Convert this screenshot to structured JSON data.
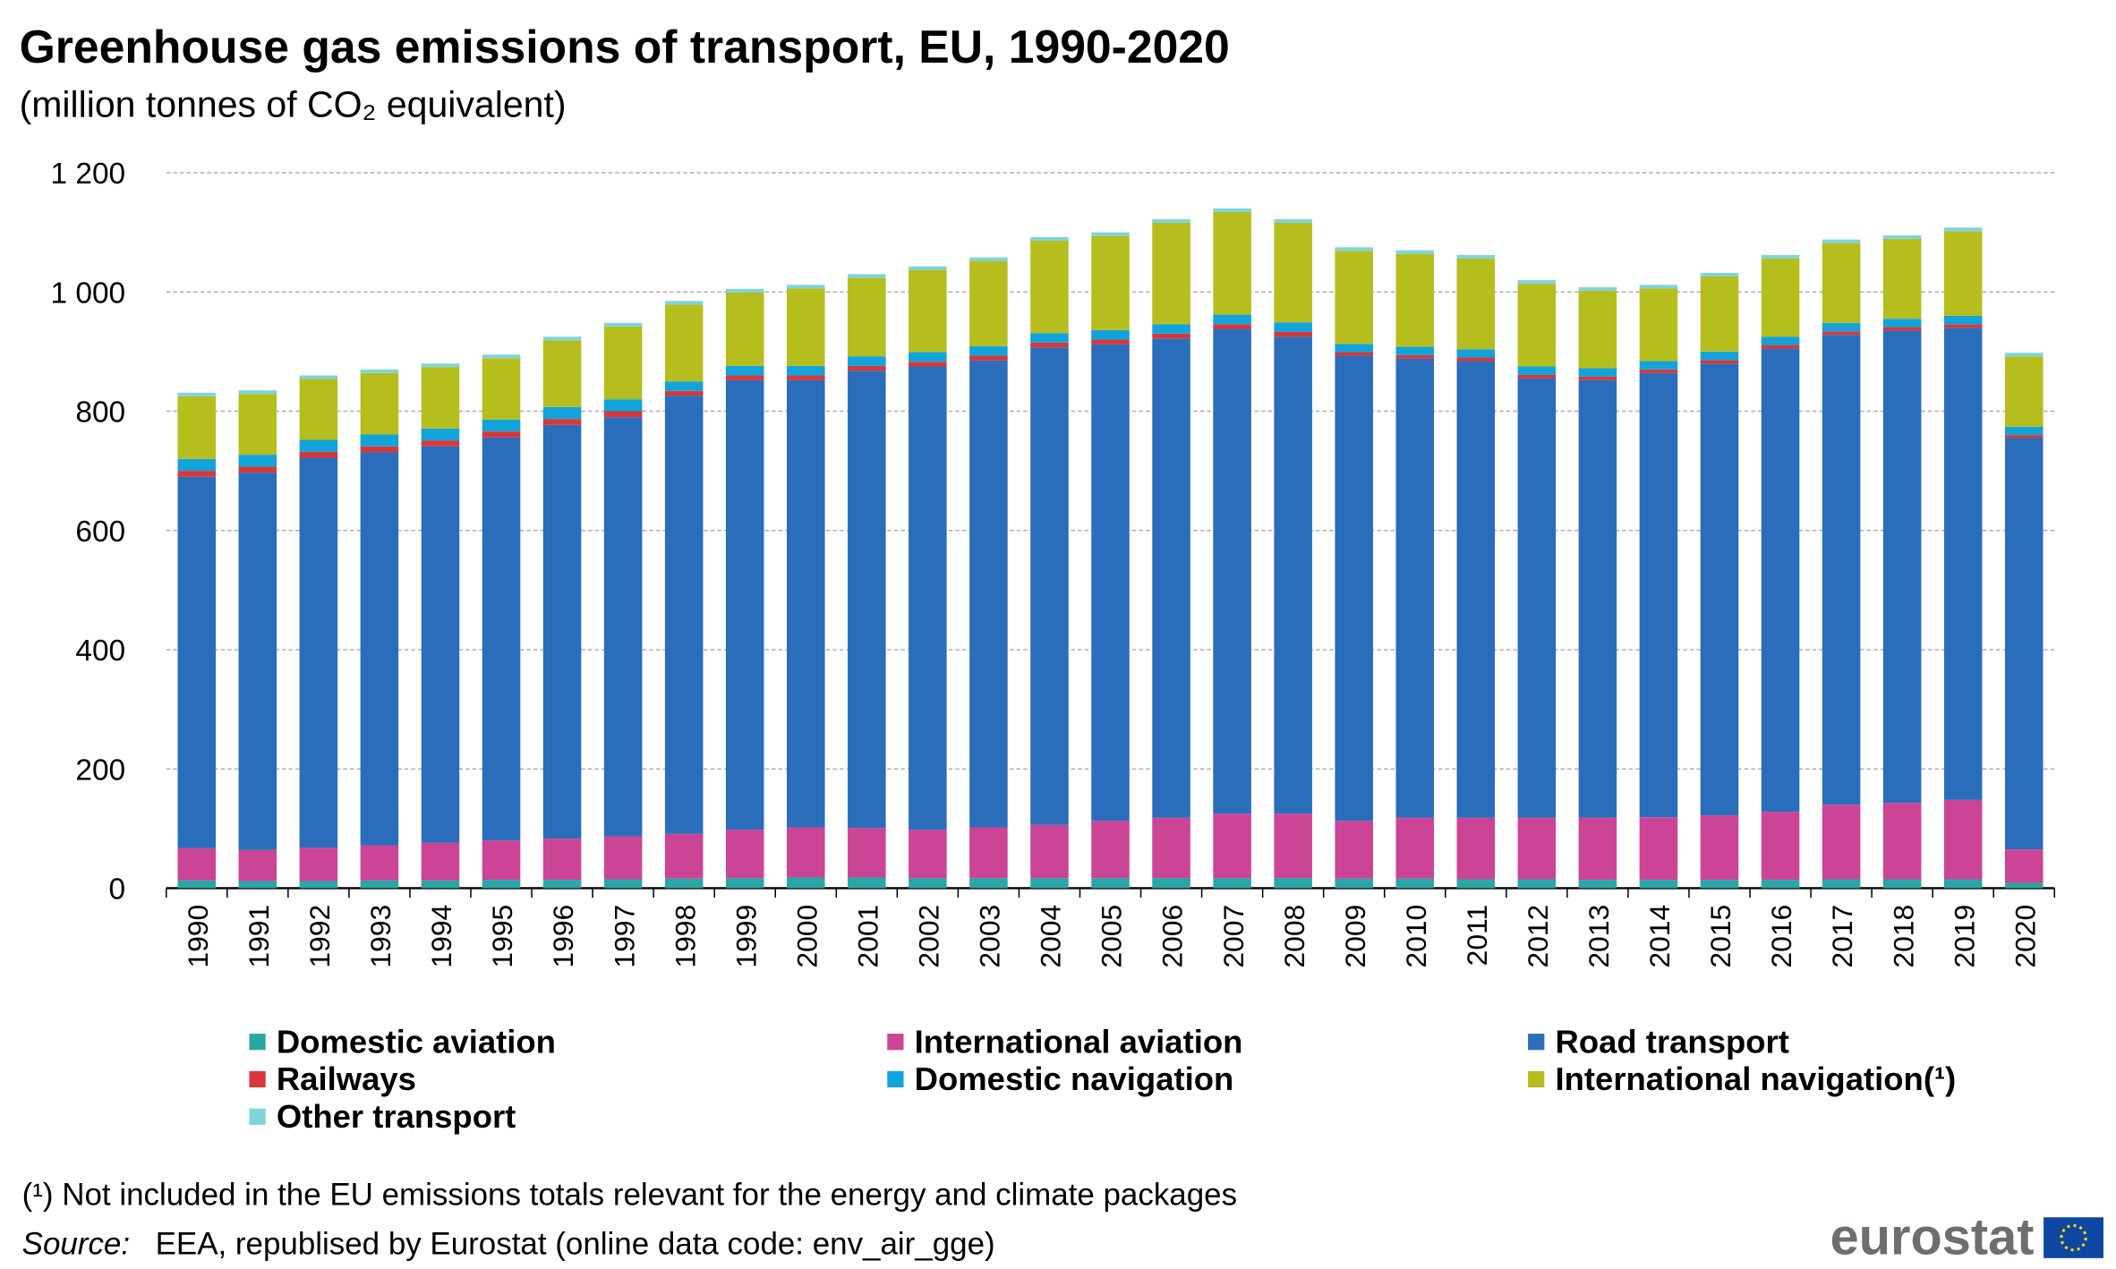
{
  "chart_data": {
    "type": "stacked_bar",
    "title": "Greenhouse gas emissions of transport, EU, 1990-2020",
    "subtitle": "(million tonnes of CO₂ equivalent)",
    "categories": [
      "1990",
      "1991",
      "1992",
      "1993",
      "1994",
      "1995",
      "1996",
      "1997",
      "1998",
      "1999",
      "2000",
      "2001",
      "2002",
      "2003",
      "2004",
      "2005",
      "2006",
      "2007",
      "2008",
      "2009",
      "2010",
      "2011",
      "2012",
      "2013",
      "2014",
      "2015",
      "2016",
      "2017",
      "2018",
      "2019",
      "2020"
    ],
    "series": [
      {
        "name": "Domestic aviation",
        "color": "#2aa6a6",
        "values": [
          13,
          12,
          12,
          13,
          13,
          14,
          14,
          15,
          16,
          17,
          18,
          18,
          17,
          17,
          17,
          17,
          17,
          17,
          17,
          16,
          16,
          15,
          15,
          14,
          14,
          14,
          14,
          15,
          15,
          15,
          9
        ]
      },
      {
        "name": "International aviation",
        "color": "#cc4496",
        "values": [
          54,
          52,
          56,
          59,
          63,
          66,
          69,
          72,
          75,
          81,
          84,
          83,
          81,
          85,
          89,
          96,
          101,
          108,
          108,
          97,
          102,
          103,
          103,
          104,
          105,
          108,
          114,
          125,
          128,
          133,
          56
        ]
      },
      {
        "name": "Road transport",
        "color": "#2a6ebb",
        "values": [
          623,
          633,
          654,
          659,
          665,
          676,
          694,
          703,
          735,
          754,
          750,
          767,
          777,
          783,
          801,
          799,
          804,
          813,
          800,
          780,
          770,
          766,
          737,
          734,
          745,
          758,
          777,
          788,
          792,
          792,
          690
        ]
      },
      {
        "name": "Railways",
        "color": "#d6383a",
        "values": [
          10,
          10,
          10,
          10,
          10,
          10,
          10,
          10,
          8,
          8,
          8,
          8,
          8,
          8,
          8,
          8,
          8,
          8,
          8,
          6,
          6,
          6,
          6,
          6,
          6,
          6,
          6,
          6,
          6,
          6,
          5
        ]
      },
      {
        "name": "Domestic navigation",
        "color": "#12a3db",
        "values": [
          20,
          20,
          20,
          20,
          20,
          20,
          20,
          20,
          16,
          16,
          16,
          16,
          16,
          16,
          16,
          16,
          16,
          16,
          16,
          14,
          14,
          14,
          14,
          14,
          14,
          14,
          14,
          14,
          14,
          14,
          14
        ]
      },
      {
        "name": "International navigation(¹)",
        "color": "#b5be1d",
        "values": [
          105,
          102,
          102,
          103,
          103,
          103,
          112,
          122,
          129,
          123,
          130,
          132,
          138,
          143,
          155,
          158,
          170,
          172,
          167,
          156,
          156,
          152,
          139,
          130,
          122,
          126,
          131,
          134,
          134,
          142,
          118
        ]
      },
      {
        "name": "Other transport",
        "color": "#7fd4dc",
        "values": [
          6,
          6,
          6,
          6,
          6,
          6,
          6,
          6,
          6,
          6,
          6,
          6,
          6,
          6,
          6,
          6,
          6,
          6,
          6,
          6,
          6,
          6,
          6,
          6,
          6,
          6,
          6,
          6,
          6,
          6,
          6
        ]
      }
    ],
    "ylim": [
      0,
      1200
    ],
    "yticks": [
      0,
      200,
      400,
      600,
      800,
      {
        "value": 1000,
        "label": "1 000"
      },
      {
        "value": 1200,
        "label": "1 200"
      }
    ],
    "grid": true,
    "legend": "bottom",
    "footnote": "(¹) Not included in the EU emissions totals relevant for the energy and climate packages",
    "source_label": "Source:",
    "source": "EEA, republised by Eurostat (online data code: env_air_gge)",
    "logo": "eurostat"
  }
}
